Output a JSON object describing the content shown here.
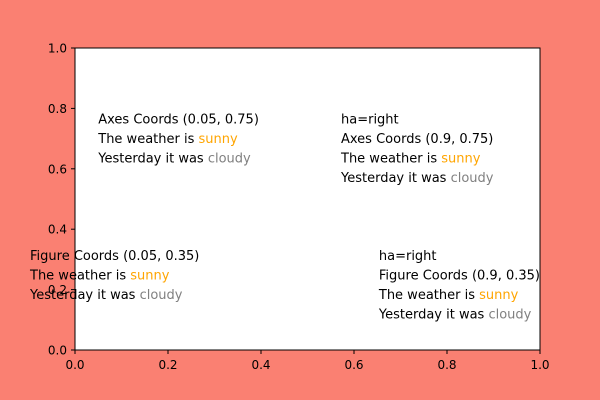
{
  "chart_data": {
    "type": "scatter",
    "title": "",
    "xlabel": "",
    "ylabel": "",
    "xlim": [
      0,
      1
    ],
    "ylim": [
      0,
      1
    ],
    "grid": false,
    "series": [],
    "x_ticks": [
      "0.0",
      "0.2",
      "0.4",
      "0.6",
      "0.8",
      "1.0"
    ],
    "y_ticks": [
      "0.0",
      "0.2",
      "0.4",
      "0.6",
      "0.8",
      "1.0"
    ],
    "colors": {
      "figure_background": "#fa8072",
      "axes_background": "#ffffff",
      "text": "#000000",
      "sunny": "#ffa500",
      "cloudy": "#808080"
    },
    "annotations": [
      {
        "name": "axes-coords-left",
        "coords": "axes",
        "ha": "left",
        "x": 0.05,
        "y": 0.75,
        "lines": [
          [
            {
              "text": "Axes Coords (0.05, 0.75)",
              "color": "text"
            }
          ],
          [
            {
              "text": "The weather is ",
              "color": "text"
            },
            {
              "text": "sunny",
              "color": "sunny"
            }
          ],
          [
            {
              "text": "Yesterday it was ",
              "color": "text"
            },
            {
              "text": "cloudy",
              "color": "cloudy"
            }
          ]
        ]
      },
      {
        "name": "axes-coords-right",
        "coords": "axes",
        "ha": "right",
        "x": 0.9,
        "y": 0.75,
        "lines": [
          [
            {
              "text": "ha=right",
              "color": "text"
            }
          ],
          [
            {
              "text": "Axes Coords (0.9, 0.75)",
              "color": "text"
            }
          ],
          [
            {
              "text": "The weather is ",
              "color": "text"
            },
            {
              "text": "sunny",
              "color": "sunny"
            }
          ],
          [
            {
              "text": "Yesterday it was ",
              "color": "text"
            },
            {
              "text": "cloudy",
              "color": "cloudy"
            }
          ]
        ]
      },
      {
        "name": "figure-coords-left",
        "coords": "figure",
        "ha": "left",
        "x": 0.05,
        "y": 0.35,
        "lines": [
          [
            {
              "text": "Figure Coords (0.05, 0.35)",
              "color": "text"
            }
          ],
          [
            {
              "text": "The weather is ",
              "color": "text"
            },
            {
              "text": "sunny",
              "color": "sunny"
            }
          ],
          [
            {
              "text": "Yesterday it was ",
              "color": "text"
            },
            {
              "text": "cloudy",
              "color": "cloudy"
            }
          ]
        ]
      },
      {
        "name": "figure-coords-right",
        "coords": "figure",
        "ha": "right",
        "x": 0.9,
        "y": 0.35,
        "lines": [
          [
            {
              "text": "ha=right",
              "color": "text"
            }
          ],
          [
            {
              "text": "Figure Coords (0.9, 0.35)",
              "color": "text"
            }
          ],
          [
            {
              "text": "The weather is ",
              "color": "text"
            },
            {
              "text": "sunny",
              "color": "sunny"
            }
          ],
          [
            {
              "text": "Yesterday it was ",
              "color": "text"
            },
            {
              "text": "cloudy",
              "color": "cloudy"
            }
          ]
        ]
      }
    ]
  }
}
